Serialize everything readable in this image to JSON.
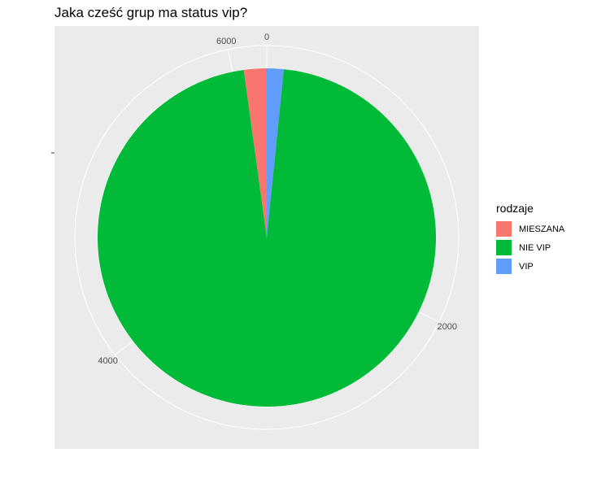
{
  "chart_data": {
    "type": "pie",
    "title": "Jaka cześć grup ma status vip?",
    "legend": {
      "title": "rodzaje",
      "placement": "right"
    },
    "theta_ticks": [
      "0",
      "2000",
      "4000",
      "6000"
    ],
    "theta_tick_values": [
      0,
      2000,
      4000,
      6000
    ],
    "theta_max": 6200,
    "series": [
      {
        "name": "MIESZANA",
        "value": 135,
        "color": "#F8766D"
      },
      {
        "name": "NIE VIP",
        "value": 5965,
        "color": "#00BA38"
      },
      {
        "name": "VIP",
        "value": 100,
        "color": "#619CFF"
      }
    ],
    "grid": true,
    "panel_background": "#EBEBEB",
    "grid_color": "#FFFFFF"
  }
}
